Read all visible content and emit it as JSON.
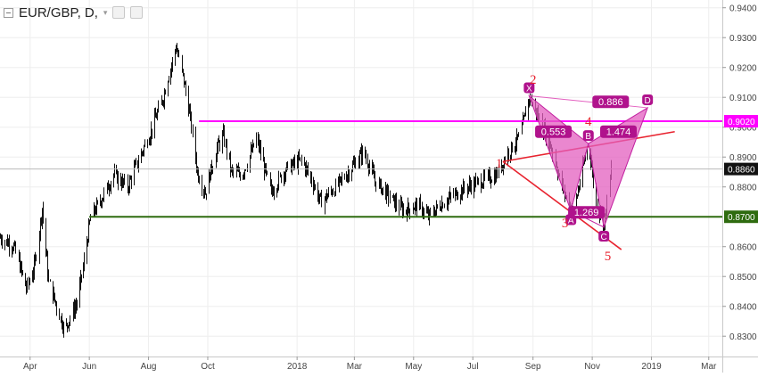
{
  "header": {
    "symbol_text": "EUR/GBP, D,"
  },
  "colors": {
    "candle": "#111111",
    "magenta_level": "#ff00ff",
    "green_level": "#2e6b0f",
    "gray_level": "#b9b9b9",
    "pattern_fill": "#e35fbf",
    "pattern_edge": "#c21fa0",
    "wave_red": "#e8232f",
    "label_bg": "#b0128c"
  },
  "chart_data": {
    "type": "candlestick",
    "title": "EUR/GBP, D,",
    "xlabel": "",
    "ylabel": "",
    "ylim": [
      0.825,
      0.942
    ],
    "grid": true,
    "x_axis": {
      "range": [
        "2017-03-01",
        "2019-03-15"
      ],
      "ticks": [
        {
          "label": "Apr",
          "date": "2017-04-01"
        },
        {
          "label": "Jun",
          "date": "2017-06-01"
        },
        {
          "label": "Aug",
          "date": "2017-08-01"
        },
        {
          "label": "Oct",
          "date": "2017-10-01"
        },
        {
          "label": "2018",
          "date": "2018-01-01"
        },
        {
          "label": "Mar",
          "date": "2018-03-01"
        },
        {
          "label": "May",
          "date": "2018-05-01"
        },
        {
          "label": "Jul",
          "date": "2018-07-01"
        },
        {
          "label": "Sep",
          "date": "2018-09-01"
        },
        {
          "label": "Nov",
          "date": "2018-11-01"
        },
        {
          "label": "2019",
          "date": "2019-01-01"
        },
        {
          "label": "Mar",
          "date": "2019-03-01"
        }
      ]
    },
    "y_axis": {
      "ticks": [
        {
          "label": "0.9400",
          "value": 0.94
        },
        {
          "label": "0.9300",
          "value": 0.93
        },
        {
          "label": "0.9200",
          "value": 0.92
        },
        {
          "label": "0.9100",
          "value": 0.91
        },
        {
          "label": "0.9000",
          "value": 0.9
        },
        {
          "label": "0.8900",
          "value": 0.89
        },
        {
          "label": "0.8800",
          "value": 0.88
        },
        {
          "label": "0.8600",
          "value": 0.86
        },
        {
          "label": "0.8500",
          "value": 0.85
        },
        {
          "label": "0.8400",
          "value": 0.84
        },
        {
          "label": "0.8300",
          "value": 0.83
        }
      ]
    },
    "price_path": [
      [
        "2017-03-01",
        0.863
      ],
      [
        "2017-03-15",
        0.86
      ],
      [
        "2017-03-28",
        0.846
      ],
      [
        "2017-04-05",
        0.853
      ],
      [
        "2017-04-13",
        0.873
      ],
      [
        "2017-04-20",
        0.848
      ],
      [
        "2017-05-01",
        0.837
      ],
      [
        "2017-05-06",
        0.832
      ],
      [
        "2017-05-20",
        0.842
      ],
      [
        "2017-05-26",
        0.855
      ],
      [
        "2017-06-02",
        0.87
      ],
      [
        "2017-06-15",
        0.877
      ],
      [
        "2017-06-26",
        0.884
      ],
      [
        "2017-07-10",
        0.88
      ],
      [
        "2017-07-20",
        0.888
      ],
      [
        "2017-08-01",
        0.897
      ],
      [
        "2017-08-15",
        0.909
      ],
      [
        "2017-08-29",
        0.927
      ],
      [
        "2017-09-05",
        0.917
      ],
      [
        "2017-09-12",
        0.905
      ],
      [
        "2017-09-20",
        0.885
      ],
      [
        "2017-09-28",
        0.878
      ],
      [
        "2017-10-10",
        0.893
      ],
      [
        "2017-10-17",
        0.897
      ],
      [
        "2017-10-25",
        0.885
      ],
      [
        "2017-11-05",
        0.884
      ],
      [
        "2017-11-20",
        0.896
      ],
      [
        "2017-12-05",
        0.878
      ],
      [
        "2017-12-20",
        0.886
      ],
      [
        "2018-01-05",
        0.889
      ],
      [
        "2018-01-15",
        0.883
      ],
      [
        "2018-01-25",
        0.875
      ],
      [
        "2018-02-10",
        0.88
      ],
      [
        "2018-02-25",
        0.886
      ],
      [
        "2018-03-10",
        0.892
      ],
      [
        "2018-03-22",
        0.882
      ],
      [
        "2018-04-05",
        0.877
      ],
      [
        "2018-04-20",
        0.872
      ],
      [
        "2018-05-05",
        0.874
      ],
      [
        "2018-05-16",
        0.87
      ],
      [
        "2018-05-28",
        0.874
      ],
      [
        "2018-06-10",
        0.877
      ],
      [
        "2018-06-25",
        0.88
      ],
      [
        "2018-07-10",
        0.882
      ],
      [
        "2018-07-25",
        0.884
      ],
      [
        "2018-08-05",
        0.891
      ],
      [
        "2018-08-18",
        0.897
      ],
      [
        "2018-08-28",
        0.91
      ],
      [
        "2018-09-08",
        0.902
      ],
      [
        "2018-09-20",
        0.893
      ],
      [
        "2018-09-28",
        0.883
      ],
      [
        "2018-10-06",
        0.875
      ],
      [
        "2018-10-12",
        0.872
      ],
      [
        "2018-10-20",
        0.883
      ],
      [
        "2018-10-28",
        0.895
      ],
      [
        "2018-11-05",
        0.874
      ],
      [
        "2018-11-13",
        0.867
      ],
      [
        "2018-11-20",
        0.886
      ]
    ],
    "horizontal_levels": [
      {
        "value": 0.902,
        "label": "0.9020",
        "color": "#ff00ff",
        "start_date": "2017-09-22"
      },
      {
        "value": 0.886,
        "label": "0.8860",
        "color": "#b9b9b9",
        "start_date": "2017-03-01"
      },
      {
        "value": 0.87,
        "label": "0.8700",
        "color": "#2e6b0f",
        "start_date": "2017-06-01"
      }
    ],
    "harmonic_pattern": {
      "points": [
        {
          "name": "X",
          "date": "2018-08-28",
          "value": 0.9105
        },
        {
          "name": "A",
          "date": "2018-10-10",
          "value": 0.872
        },
        {
          "name": "B",
          "date": "2018-10-28",
          "value": 0.8945
        },
        {
          "name": "C",
          "date": "2018-11-13",
          "value": 0.8665
        },
        {
          "name": "D",
          "date": "2018-12-28",
          "value": 0.9065
        }
      ],
      "ratios": [
        {
          "label": "0.553",
          "date": "2018-09-22",
          "value": 0.8985
        },
        {
          "label": "0.886",
          "date": "2018-11-20",
          "value": 0.9085
        },
        {
          "label": "1.474",
          "date": "2018-11-28",
          "value": 0.8985
        },
        {
          "label": "1.269",
          "date": "2018-10-26",
          "value": 0.8715
        }
      ]
    },
    "wave_labels": [
      {
        "label": "1",
        "date": "2018-07-28",
        "value": 0.8865
      },
      {
        "label": "2",
        "date": "2018-09-01",
        "value": 0.9145
      },
      {
        "label": "3",
        "date": "2018-10-04",
        "value": 0.8665
      },
      {
        "label": "4",
        "date": "2018-10-28",
        "value": 0.9005
      },
      {
        "label": "5",
        "date": "2018-11-17",
        "value": 0.8555
      }
    ],
    "trendlines": [
      {
        "from": {
          "date": "2018-08-01",
          "value": 0.8885
        },
        "to": {
          "date": "2019-01-25",
          "value": 0.8985
        }
      },
      {
        "from": {
          "date": "2018-08-01",
          "value": 0.8885
        },
        "to": {
          "date": "2018-12-01",
          "value": 0.859
        }
      }
    ]
  }
}
